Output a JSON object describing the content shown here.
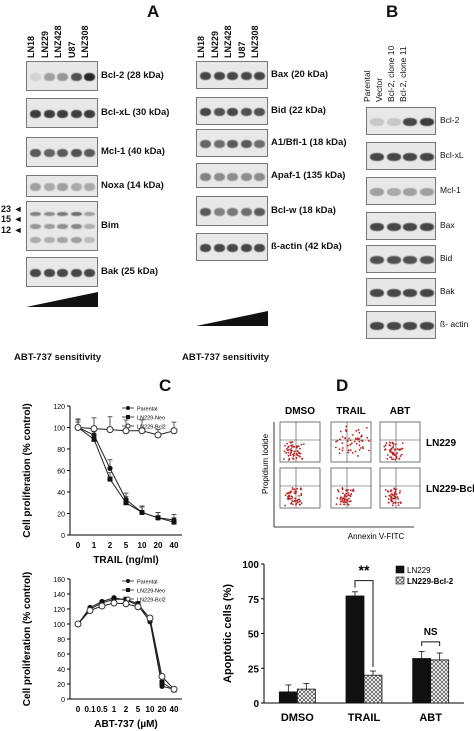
{
  "panel_letters": {
    "a": "A",
    "b": "B",
    "c": "C",
    "d": "D"
  },
  "panel_a": {
    "left_lanes": [
      "LN18",
      "LN229",
      "LNZ428",
      "U87",
      "LNZ308"
    ],
    "right_lanes": [
      "LN18",
      "LN229",
      "LNZ428",
      "U87",
      "LNZ308"
    ],
    "left_blots": [
      {
        "label": "Bcl-2 (28 kDa)",
        "intensity": [
          0.1,
          0.35,
          0.4,
          0.75,
          0.95
        ]
      },
      {
        "label": "Bcl-xL (30 kDa)",
        "intensity": [
          0.85,
          0.85,
          0.85,
          0.85,
          0.85
        ]
      },
      {
        "label": "Mcl-1 (40 kDa)",
        "intensity": [
          0.7,
          0.65,
          0.7,
          0.75,
          0.7
        ]
      },
      {
        "label": "Noxa (14 kDa)",
        "intensity": [
          0.35,
          0.3,
          0.35,
          0.3,
          0.3
        ]
      },
      {
        "label": "Bim",
        "intensity": [
          0.5,
          0.45,
          0.55,
          0.6,
          0.35
        ]
      },
      {
        "label": "Bak (25 kDa)",
        "intensity": [
          0.8,
          0.8,
          0.8,
          0.8,
          0.8
        ]
      }
    ],
    "bim_markers": [
      "23",
      "15",
      "12"
    ],
    "right_blots": [
      {
        "label": "Bax (20 kDa)",
        "intensity": [
          0.8,
          0.8,
          0.8,
          0.8,
          0.8
        ]
      },
      {
        "label": "Bid (22 kDa)",
        "intensity": [
          0.8,
          0.75,
          0.8,
          0.75,
          0.75
        ]
      },
      {
        "label": "A1/Bfl-1 (18 kDa)",
        "intensity": [
          0.65,
          0.6,
          0.7,
          0.7,
          0.6
        ]
      },
      {
        "label": "Apaf-1 (135 kDa)",
        "intensity": [
          0.5,
          0.45,
          0.45,
          0.45,
          0.45
        ]
      },
      {
        "label": "Bcl-w (18 kDa)",
        "intensity": [
          0.7,
          0.5,
          0.55,
          0.6,
          0.7
        ]
      },
      {
        "label": "ß-actin (42 kDa)",
        "intensity": [
          0.8,
          0.8,
          0.8,
          0.8,
          0.8
        ]
      }
    ],
    "sensitivity_label": "ABT-737 sensitivity"
  },
  "panel_b": {
    "lanes": [
      "Parental",
      "Vector",
      "Bcl-2, clone 10",
      "Bcl-2, clone 11"
    ],
    "blots": [
      {
        "label": "Bcl-2",
        "intensity": [
          0.15,
          0.15,
          0.8,
          0.85
        ]
      },
      {
        "label": "Bcl-xL",
        "intensity": [
          0.8,
          0.8,
          0.8,
          0.8
        ]
      },
      {
        "label": "Mcl-1",
        "intensity": [
          0.35,
          0.3,
          0.35,
          0.35
        ]
      },
      {
        "label": "Bax",
        "intensity": [
          0.8,
          0.8,
          0.8,
          0.8
        ]
      },
      {
        "label": "Bid",
        "intensity": [
          0.75,
          0.75,
          0.75,
          0.75
        ]
      },
      {
        "label": "Bak",
        "intensity": [
          0.8,
          0.8,
          0.8,
          0.8
        ]
      },
      {
        "label": "ß- actin",
        "intensity": [
          0.8,
          0.8,
          0.8,
          0.8
        ]
      }
    ]
  },
  "panel_d_flow": {
    "columns": [
      "DMSO",
      "TRAIL",
      "ABT"
    ],
    "rows": [
      "LN229",
      "LN229-Bcl-2"
    ],
    "y_label": "Propidium Iodide",
    "x_label": "Annexin V-FITC"
  },
  "chart_data": [
    {
      "type": "line",
      "xlabel": "TRAIL (ng/ml)",
      "ylabel": "Cell proliferation (% control)",
      "categories": [
        "0",
        "1",
        "2",
        "5",
        "10",
        "20",
        "40"
      ],
      "ylim": [
        0,
        120
      ],
      "yticks": [
        "0",
        "20",
        "40",
        "60",
        "80",
        "100",
        "120"
      ],
      "legend_position": "top-right",
      "series": [
        {
          "name": "Parental",
          "values": [
            100,
            93,
            62,
            33,
            21,
            16,
            14
          ],
          "err": [
            8,
            8,
            8,
            6,
            6,
            5,
            5
          ],
          "marker": "circle-filled"
        },
        {
          "name": "LN229-Neo",
          "values": [
            100,
            89,
            52,
            30,
            21,
            16,
            12
          ],
          "err": [
            7,
            7,
            6,
            6,
            5,
            5,
            4
          ],
          "marker": "square-filled"
        },
        {
          "name": "LN229-Bcl2",
          "values": [
            100,
            99,
            98,
            97,
            97,
            93,
            97
          ],
          "err": [
            5,
            10,
            12,
            10,
            10,
            5,
            8
          ],
          "marker": "circle-open"
        }
      ]
    },
    {
      "type": "line",
      "xlabel": "ABT-737 (µM)",
      "ylabel": "Cell proliferation (% control)",
      "categories": [
        "0",
        "0.1",
        "0.5",
        "1",
        "2",
        "5",
        "10",
        "20",
        "40"
      ],
      "ylim": [
        0,
        160
      ],
      "yticks": [
        "0",
        "20",
        "40",
        "60",
        "80",
        "100",
        "120",
        "140",
        "160"
      ],
      "legend_position": "top-right",
      "series": [
        {
          "name": "Parental",
          "values": [
            100,
            122,
            130,
            135,
            132,
            125,
            103,
            17,
            13
          ],
          "marker": "circle-filled"
        },
        {
          "name": "LN229-Neo",
          "values": [
            100,
            120,
            128,
            133,
            133,
            127,
            107,
            22,
            12
          ],
          "marker": "square-filled"
        },
        {
          "name": "LN229-Bcl2",
          "values": [
            100,
            118,
            124,
            128,
            127,
            123,
            108,
            30,
            13
          ],
          "marker": "circle-open"
        }
      ]
    },
    {
      "type": "bar",
      "ylabel": "Apoptotic cells (%)",
      "categories": [
        "DMSO",
        "TRAIL",
        "ABT"
      ],
      "ylim": [
        0,
        100
      ],
      "yticks": [
        "0",
        "25",
        "50",
        "75",
        "100"
      ],
      "legend_position": "top-right",
      "series": [
        {
          "name": "LN229",
          "values": [
            8,
            77,
            32
          ],
          "err": [
            5,
            3,
            5
          ],
          "fill": "#111111"
        },
        {
          "name": "LN229-Bcl-2",
          "values": [
            10,
            20,
            31
          ],
          "err": [
            4,
            3,
            5
          ],
          "fill": "hatched"
        }
      ],
      "annotations": [
        {
          "text": "**",
          "between": "TRAIL"
        },
        {
          "text": "NS",
          "between": "ABT"
        }
      ]
    }
  ]
}
